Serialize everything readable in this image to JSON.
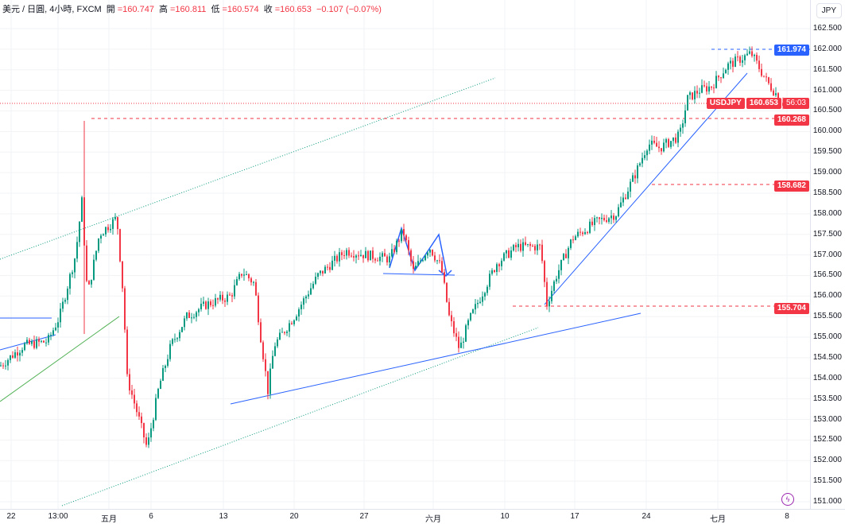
{
  "legend": {
    "symbol": "美元 / 日圓, 4小時, FXCM",
    "open_label": "開",
    "open": "=160.747",
    "high_label": "高",
    "high": "=160.811",
    "low_label": "低",
    "low": "=160.574",
    "close_label": "收",
    "close": "=160.653",
    "change": "−0.107 (−0.07%)"
  },
  "currency_button": "JPY",
  "price_axis": [
    "162.500",
    "162.000",
    "161.500",
    "161.000",
    "160.500",
    "160.000",
    "159.500",
    "159.000",
    "158.500",
    "158.000",
    "157.500",
    "157.000",
    "156.500",
    "156.000",
    "155.500",
    "155.000",
    "154.500",
    "154.000",
    "153.500",
    "153.000",
    "152.500",
    "152.000",
    "151.500",
    "151.000"
  ],
  "levels": [
    {
      "value": 161.974,
      "label": "161.974",
      "color": "#2962ff"
    },
    {
      "value": 160.268,
      "label": "160.268",
      "color": "#f23645"
    },
    {
      "value": 158.682,
      "label": "158.682",
      "color": "#f23645"
    },
    {
      "value": 155.704,
      "label": "155.704",
      "color": "#f23645"
    }
  ],
  "current": {
    "symbol": "USDJPY",
    "price": "160.653",
    "countdown": "56:03",
    "value": 160.653
  },
  "time_axis": [
    "22",
    "13:00",
    "五月",
    "6",
    "13",
    "20",
    "27",
    "六月",
    "10",
    "17",
    "24",
    "七月",
    "8"
  ],
  "colors": {
    "up": "#089981",
    "down": "#f23645",
    "draw_blue": "#2962ff",
    "channel_green": "#089981"
  },
  "price_path": [
    [
      0,
      154.3
    ],
    [
      30,
      154.8
    ],
    [
      60,
      154.9
    ],
    [
      75,
      155.5
    ],
    [
      95,
      157
    ],
    [
      103,
      158.3
    ],
    [
      110,
      156
    ],
    [
      125,
      157.5
    ],
    [
      147,
      157.9
    ],
    [
      155,
      156
    ],
    [
      160,
      154
    ],
    [
      175,
      153
    ],
    [
      185,
      152.3
    ],
    [
      200,
      153.8
    ],
    [
      215,
      154.8
    ],
    [
      235,
      155.5
    ],
    [
      260,
      155.8
    ],
    [
      290,
      156
    ],
    [
      305,
      156.6
    ],
    [
      320,
      156.3
    ],
    [
      328,
      155
    ],
    [
      337,
      153.7
    ],
    [
      345,
      154.8
    ],
    [
      370,
      155.5
    ],
    [
      400,
      156.5
    ],
    [
      435,
      157.1
    ],
    [
      460,
      157
    ],
    [
      490,
      156.9
    ],
    [
      507,
      157.6
    ],
    [
      520,
      156.6
    ],
    [
      540,
      157.2
    ],
    [
      555,
      156.7
    ],
    [
      565,
      155.5
    ],
    [
      578,
      154.7
    ],
    [
      590,
      155.4
    ],
    [
      605,
      156
    ],
    [
      625,
      156.8
    ],
    [
      650,
      157.2
    ],
    [
      680,
      157.2
    ],
    [
      688,
      155.8
    ],
    [
      700,
      156.5
    ],
    [
      720,
      157.4
    ],
    [
      750,
      157.8
    ],
    [
      775,
      158
    ],
    [
      800,
      159
    ],
    [
      815,
      159.7
    ],
    [
      830,
      159.6
    ],
    [
      855,
      159.9
    ],
    [
      865,
      160.8
    ],
    [
      880,
      161
    ],
    [
      895,
      161.1
    ],
    [
      915,
      161.6
    ],
    [
      945,
      161.9
    ],
    [
      965,
      161.2
    ],
    [
      985,
      160.7
    ]
  ]
}
